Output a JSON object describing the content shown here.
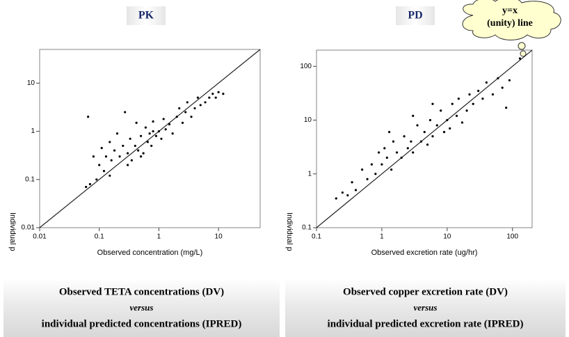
{
  "chart_data": [
    {
      "type": "scatter",
      "title": "PK",
      "x_label": "Observed concentration (mg/L)",
      "y_label": "Individual p",
      "log_x": true,
      "log_y": true,
      "unity_line": true,
      "color": "#000000",
      "xlim": [
        0.01,
        50
      ],
      "ylim": [
        0.01,
        50
      ],
      "xticks": [
        0.01,
        0.1,
        1,
        10
      ],
      "yticks": [
        0.01,
        0.1,
        1,
        10
      ],
      "x": [
        0.065,
        0.07,
        0.08,
        0.09,
        0.1,
        0.11,
        0.12,
        0.13,
        0.15,
        0.16,
        0.18,
        0.2,
        0.22,
        0.25,
        0.27,
        0.3,
        0.33,
        0.35,
        0.4,
        0.42,
        0.45,
        0.5,
        0.55,
        0.6,
        0.65,
        0.7,
        0.75,
        0.8,
        0.9,
        1,
        1.1,
        1.2,
        1.3,
        1.5,
        1.7,
        2,
        2.2,
        2.5,
        2.8,
        3,
        3.5,
        4,
        4.5,
        5,
        6,
        7,
        8,
        9,
        10,
        12,
        0.06,
        0.15,
        0.3,
        0.5,
        0.8
      ],
      "y": [
        2,
        0.08,
        0.3,
        0.1,
        0.2,
        0.45,
        0.15,
        0.3,
        0.6,
        0.25,
        0.4,
        0.9,
        0.3,
        0.5,
        2.5,
        0.35,
        0.7,
        0.25,
        0.5,
        1.5,
        0.4,
        0.8,
        0.35,
        1.2,
        0.6,
        0.9,
        0.5,
        1.6,
        0.8,
        1,
        0.7,
        1.8,
        1.1,
        1.4,
        0.9,
        2,
        3,
        1.5,
        2.5,
        4,
        2,
        3,
        5,
        3.5,
        4,
        5,
        6,
        5,
        6.5,
        6,
        0.07,
        0.12,
        0.2,
        0.3,
        1
      ],
      "caption": [
        "Observed TETA concentrations (DV)",
        "versus",
        "individual predicted concentrations (IPRED)"
      ]
    },
    {
      "type": "scatter",
      "title": "PD",
      "x_label": "Observed excretion rate (ug/hr)",
      "y_label": "Individual p",
      "log_x": true,
      "log_y": true,
      "unity_line": true,
      "color": "#000000",
      "xlim": [
        0.1,
        200
      ],
      "ylim": [
        0.1,
        200
      ],
      "xticks": [
        0.1,
        1,
        10,
        100
      ],
      "yticks": [
        0.1,
        1,
        10,
        100
      ],
      "x": [
        0.2,
        0.25,
        0.3,
        0.35,
        0.4,
        0.5,
        0.6,
        0.7,
        0.8,
        0.9,
        1,
        1.1,
        1.2,
        1.4,
        1.5,
        1.7,
        2,
        2.2,
        2.5,
        2.8,
        3,
        3.5,
        4,
        4.5,
        5,
        5.5,
        6,
        7,
        8,
        9,
        10,
        11,
        12,
        14,
        15,
        17,
        20,
        22,
        25,
        30,
        35,
        40,
        50,
        60,
        70,
        80,
        90,
        130,
        1.3,
        3,
        6
      ],
      "y": [
        0.35,
        0.45,
        0.4,
        0.7,
        0.5,
        1.2,
        0.8,
        1.5,
        1,
        2.5,
        1.5,
        3,
        2,
        1.2,
        4,
        2.5,
        2,
        5,
        3,
        4,
        2.5,
        8,
        4,
        6,
        3.5,
        10,
        5,
        8,
        15,
        6,
        10,
        7,
        20,
        12,
        25,
        9,
        15,
        30,
        20,
        35,
        25,
        50,
        30,
        60,
        40,
        17,
        55,
        140,
        6,
        12,
        20
      ],
      "annotation": [
        "y=x",
        "(unity) line"
      ],
      "caption": [
        "Observed copper excretion rate (DV)",
        "versus",
        "individual predicted excretion rate (IPRED)"
      ]
    }
  ]
}
